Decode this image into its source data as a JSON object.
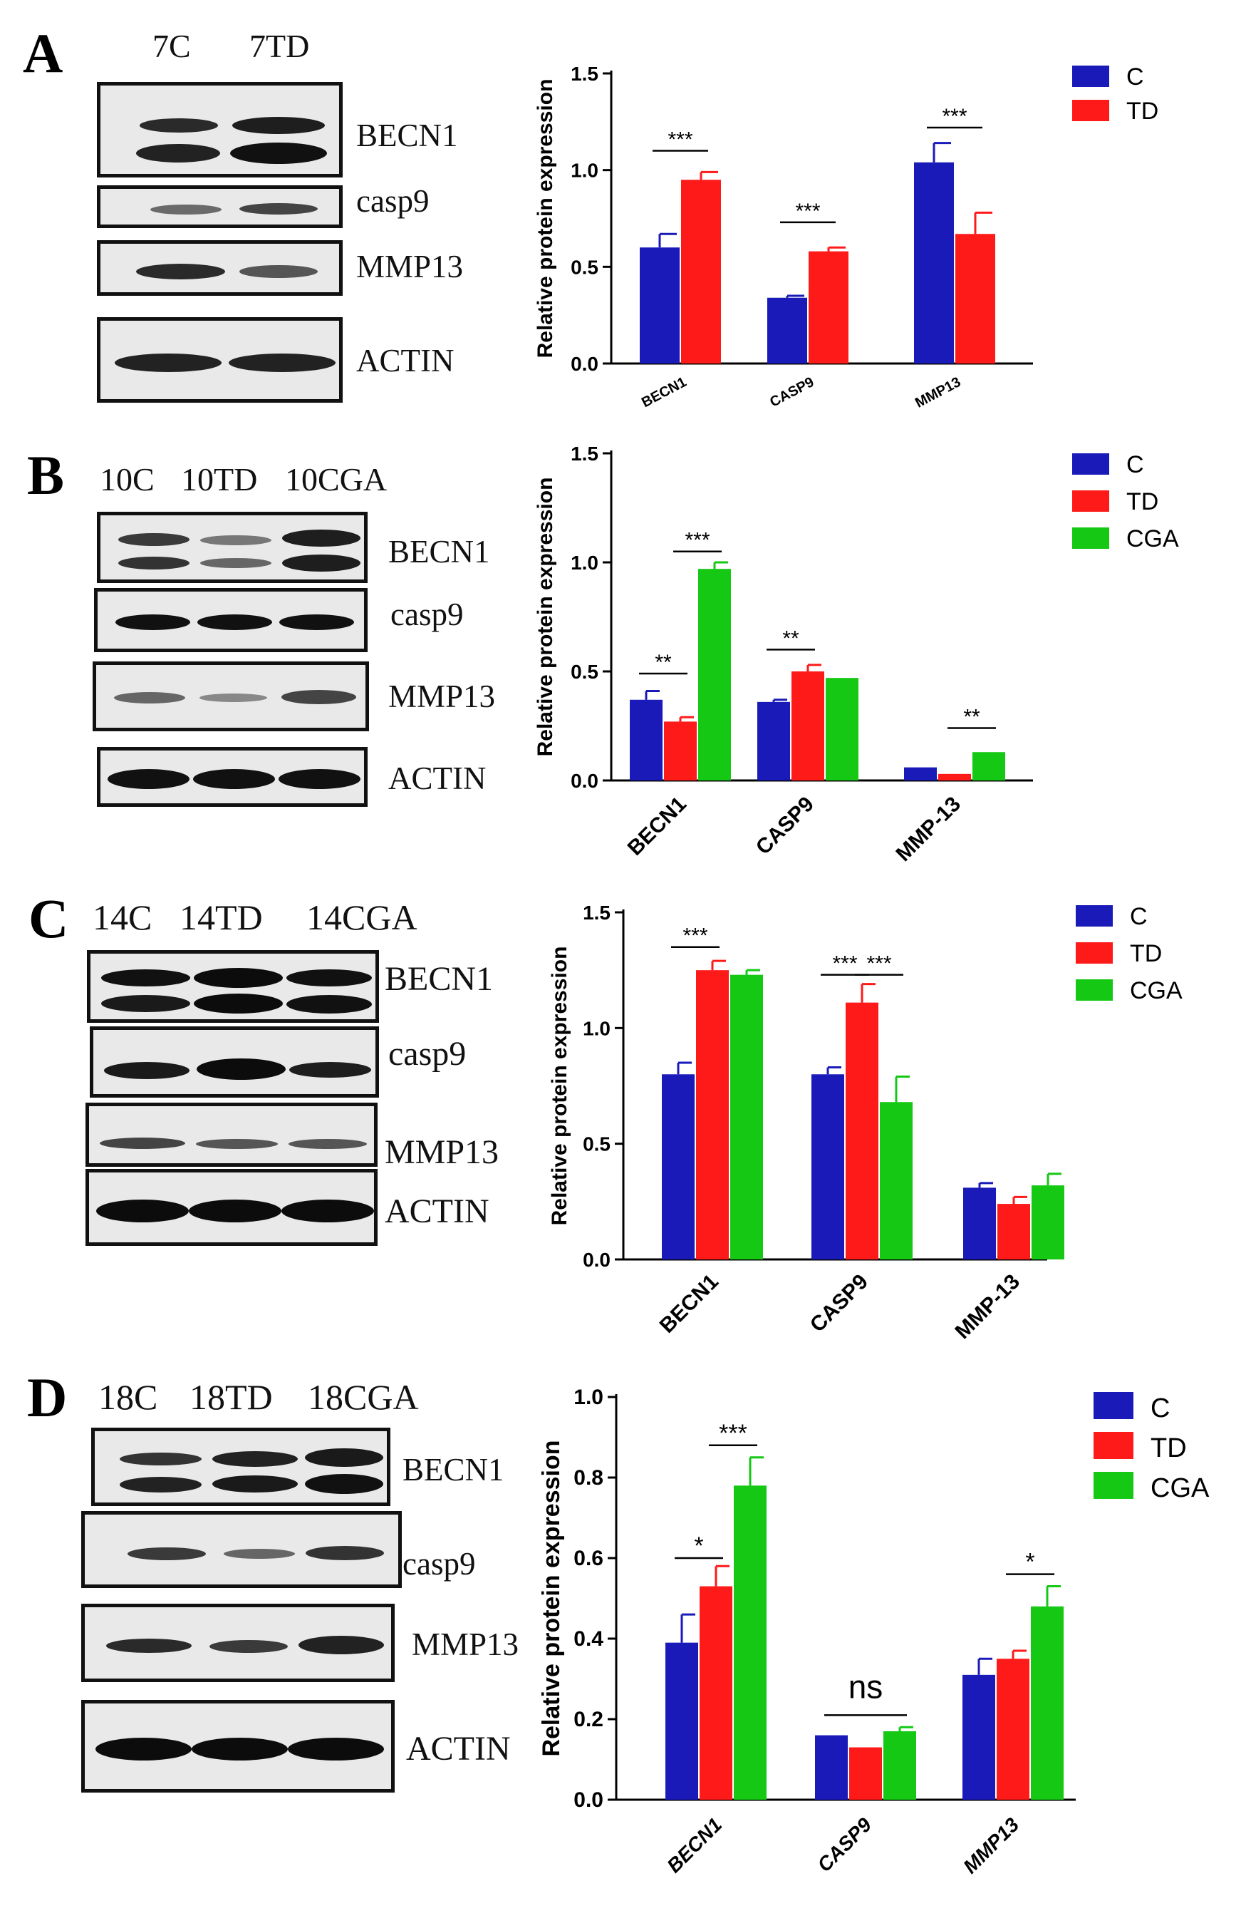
{
  "panels": [
    {
      "letter": "A",
      "lanes": [
        "7C",
        "7TD"
      ],
      "blot_labels": [
        "BECN1",
        "casp9",
        "MMP13",
        "ACTIN"
      ]
    },
    {
      "letter": "B",
      "lanes": [
        "10C",
        "10TD",
        "10CGA"
      ],
      "blot_labels": [
        "BECN1",
        "casp9",
        "MMP13",
        "ACTIN"
      ]
    },
    {
      "letter": "C",
      "lanes": [
        "14C",
        "14TD",
        "14CGA"
      ],
      "blot_labels": [
        "BECN1",
        "casp9",
        "MMP13",
        "ACTIN"
      ]
    },
    {
      "letter": "D",
      "lanes": [
        "18C",
        "18TD",
        "18CGA"
      ],
      "blot_labels": [
        "BECN1",
        "casp9",
        "MMP13",
        "ACTIN"
      ]
    }
  ],
  "colors": {
    "C": "#1a1ab8",
    "TD": "#ff1a1a",
    "CGA": "#14c814"
  },
  "chart_data": [
    {
      "type": "bar",
      "ylabel": "Relative protein expression",
      "ylim": [
        0,
        1.5
      ],
      "yticks": [
        "0.0",
        "0.5",
        "1.0",
        "1.5"
      ],
      "categories": [
        "BECN1",
        "CASP9",
        "MMP13"
      ],
      "series": [
        {
          "name": "C",
          "values": [
            0.6,
            0.34,
            1.04
          ],
          "errors": [
            0.07,
            0.01,
            0.1
          ]
        },
        {
          "name": "TD",
          "values": [
            0.95,
            0.58,
            0.67
          ],
          "errors": [
            0.04,
            0.02,
            0.11
          ]
        }
      ],
      "annotations": [
        {
          "category": 0,
          "from": 0,
          "to": 1,
          "level": 1.1,
          "text": "***"
        },
        {
          "category": 1,
          "from": 0,
          "to": 1,
          "level": 0.73,
          "text": "***"
        },
        {
          "category": 2,
          "from": 0,
          "to": 1,
          "level": 1.22,
          "text": "***"
        }
      ],
      "legend_position": "top-right"
    },
    {
      "type": "bar",
      "ylabel": "Relative protein expression",
      "ylim": [
        0,
        1.5
      ],
      "yticks": [
        "0.0",
        "0.5",
        "1.0",
        "1.5"
      ],
      "categories": [
        "BECN1",
        "CASP9",
        "MMP-13"
      ],
      "series": [
        {
          "name": "C",
          "values": [
            0.37,
            0.36,
            0.06
          ],
          "errors": [
            0.04,
            0.01,
            0.0
          ]
        },
        {
          "name": "TD",
          "values": [
            0.27,
            0.5,
            0.03
          ],
          "errors": [
            0.02,
            0.03,
            0.0
          ]
        },
        {
          "name": "CGA",
          "values": [
            0.97,
            0.47,
            0.13
          ],
          "errors": [
            0.03,
            0.0,
            0.0
          ]
        }
      ],
      "annotations": [
        {
          "category": 0,
          "from": 0,
          "to": 1,
          "level": 0.49,
          "text": "**"
        },
        {
          "category": 0,
          "from": 1,
          "to": 2,
          "level": 1.05,
          "text": "***"
        },
        {
          "category": 1,
          "from": 0,
          "to": 1,
          "level": 0.6,
          "text": "**"
        },
        {
          "category": 2,
          "from": 1,
          "to": 2,
          "level": 0.24,
          "text": "**"
        }
      ],
      "legend_position": "top-right"
    },
    {
      "type": "bar",
      "ylabel": "Relative protein expression",
      "ylim": [
        0,
        1.5
      ],
      "yticks": [
        "0.0",
        "0.5",
        "1.0",
        "1.5"
      ],
      "categories": [
        "BECN1",
        "CASP9",
        "MMP-13"
      ],
      "series": [
        {
          "name": "C",
          "values": [
            0.8,
            0.8,
            0.31
          ],
          "errors": [
            0.05,
            0.03,
            0.02
          ]
        },
        {
          "name": "TD",
          "values": [
            1.25,
            1.11,
            0.24
          ],
          "errors": [
            0.04,
            0.08,
            0.03
          ]
        },
        {
          "name": "CGA",
          "values": [
            1.23,
            0.68,
            0.32
          ],
          "errors": [
            0.02,
            0.11,
            0.05
          ]
        }
      ],
      "annotations": [
        {
          "category": 0,
          "from": 0,
          "to": 1,
          "level": 1.35,
          "text": "***"
        },
        {
          "category": 1,
          "from": 0,
          "to": 1,
          "level": 1.23,
          "text": "***"
        },
        {
          "category": 1,
          "from": 1,
          "to": 2,
          "level": 1.23,
          "text": "***"
        }
      ],
      "legend_position": "top-right"
    },
    {
      "type": "bar",
      "ylabel": "Relative protein expression",
      "ylim": [
        0,
        1.0
      ],
      "yticks": [
        "0.0",
        "0.2",
        "0.4",
        "0.6",
        "0.8",
        "1.0"
      ],
      "categories": [
        "BECN1",
        "CASP9",
        "MMP13"
      ],
      "series": [
        {
          "name": "C",
          "values": [
            0.39,
            0.16,
            0.31
          ],
          "errors": [
            0.07,
            0.0,
            0.04
          ]
        },
        {
          "name": "TD",
          "values": [
            0.53,
            0.13,
            0.35
          ],
          "errors": [
            0.05,
            0.0,
            0.02
          ]
        },
        {
          "name": "CGA",
          "values": [
            0.78,
            0.17,
            0.48
          ],
          "errors": [
            0.07,
            0.01,
            0.05
          ]
        }
      ],
      "annotations": [
        {
          "category": 0,
          "from": 0,
          "to": 1,
          "level": 0.6,
          "text": "*"
        },
        {
          "category": 0,
          "from": 1,
          "to": 2,
          "level": 0.88,
          "text": "***"
        },
        {
          "category": 1,
          "from": 0,
          "to": 2,
          "level": 0.21,
          "text": "ns"
        },
        {
          "category": 2,
          "from": 1,
          "to": 2,
          "level": 0.56,
          "text": "*"
        }
      ],
      "legend_position": "top-right"
    }
  ]
}
